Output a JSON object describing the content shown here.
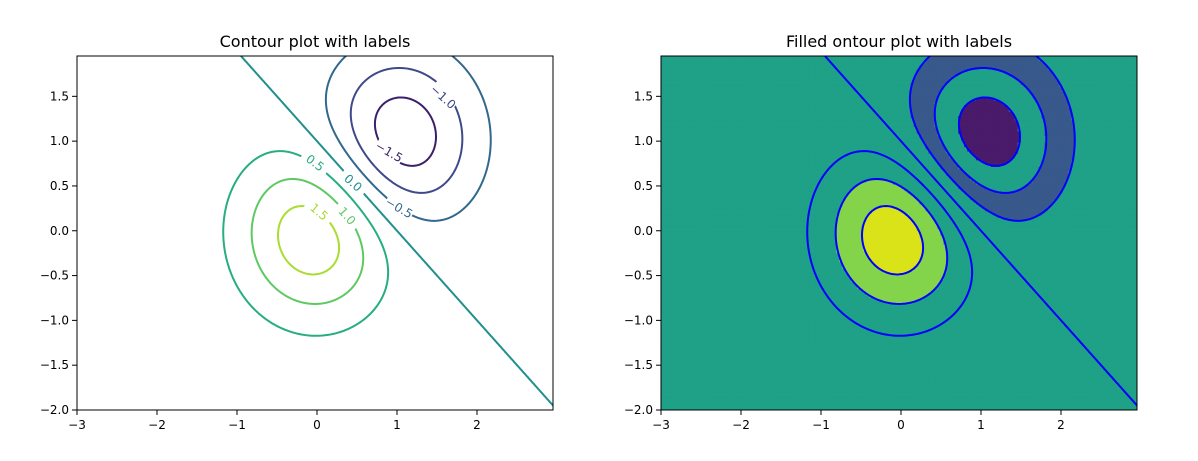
{
  "chart_data": [
    {
      "type": "contour",
      "title": "Contour plot with labels",
      "xlim": [
        -3,
        3
      ],
      "ylim": [
        -2,
        2
      ],
      "xticks": [
        "−3",
        "−2",
        "−1",
        "0",
        "1",
        "2"
      ],
      "yticks": [
        "−2.0",
        "−1.5",
        "−1.0",
        "−0.5",
        "0.0",
        "0.5",
        "1.0",
        "1.5"
      ],
      "levels": [
        -1.5,
        -1.0,
        -0.5,
        0.0,
        0.5,
        1.0,
        1.5
      ],
      "level_colors": {
        "-1.5": "#3b1f6b",
        "-1.0": "#3e4a89",
        "-0.5": "#31688e",
        "0.0": "#21908d",
        "0.5": "#27ad81",
        "1.0": "#5ec962",
        "1.5": "#aadc32"
      },
      "contour_labels": [
        "−1.5",
        "−1.0",
        "−0.5",
        "0.0",
        "0.5",
        "1.0",
        "1.5"
      ],
      "filled": false
    },
    {
      "type": "filled-contour",
      "title": "Filled ontour plot with labels",
      "xlim": [
        -3,
        3
      ],
      "ylim": [
        -2,
        2
      ],
      "xticks": [
        "−3",
        "−2",
        "−1",
        "0",
        "1",
        "2"
      ],
      "yticks": [
        "−2.0",
        "−1.5",
        "−1.0",
        "−0.5",
        "0.0",
        "0.5",
        "1.0",
        "1.5"
      ],
      "levels": [
        -1.5,
        -1.0,
        -0.5,
        0.0,
        0.5,
        1.0,
        1.5
      ],
      "fill_colors": {
        "below_-1.5": "#4a1a6b",
        "-1.5_-1.0": "#433e85",
        "-1.0_-0.5": "#38598c",
        "-0.5_0.0": "#26828e",
        "0.0_0.5": "#1fa187",
        "0.5_1.0": "#40bd72",
        "1.0_1.5": "#84d44b",
        "above_1.5": "#dae319"
      },
      "line_color": "#0000ff",
      "negative_linestyle": "dashed",
      "filled": true
    }
  ]
}
